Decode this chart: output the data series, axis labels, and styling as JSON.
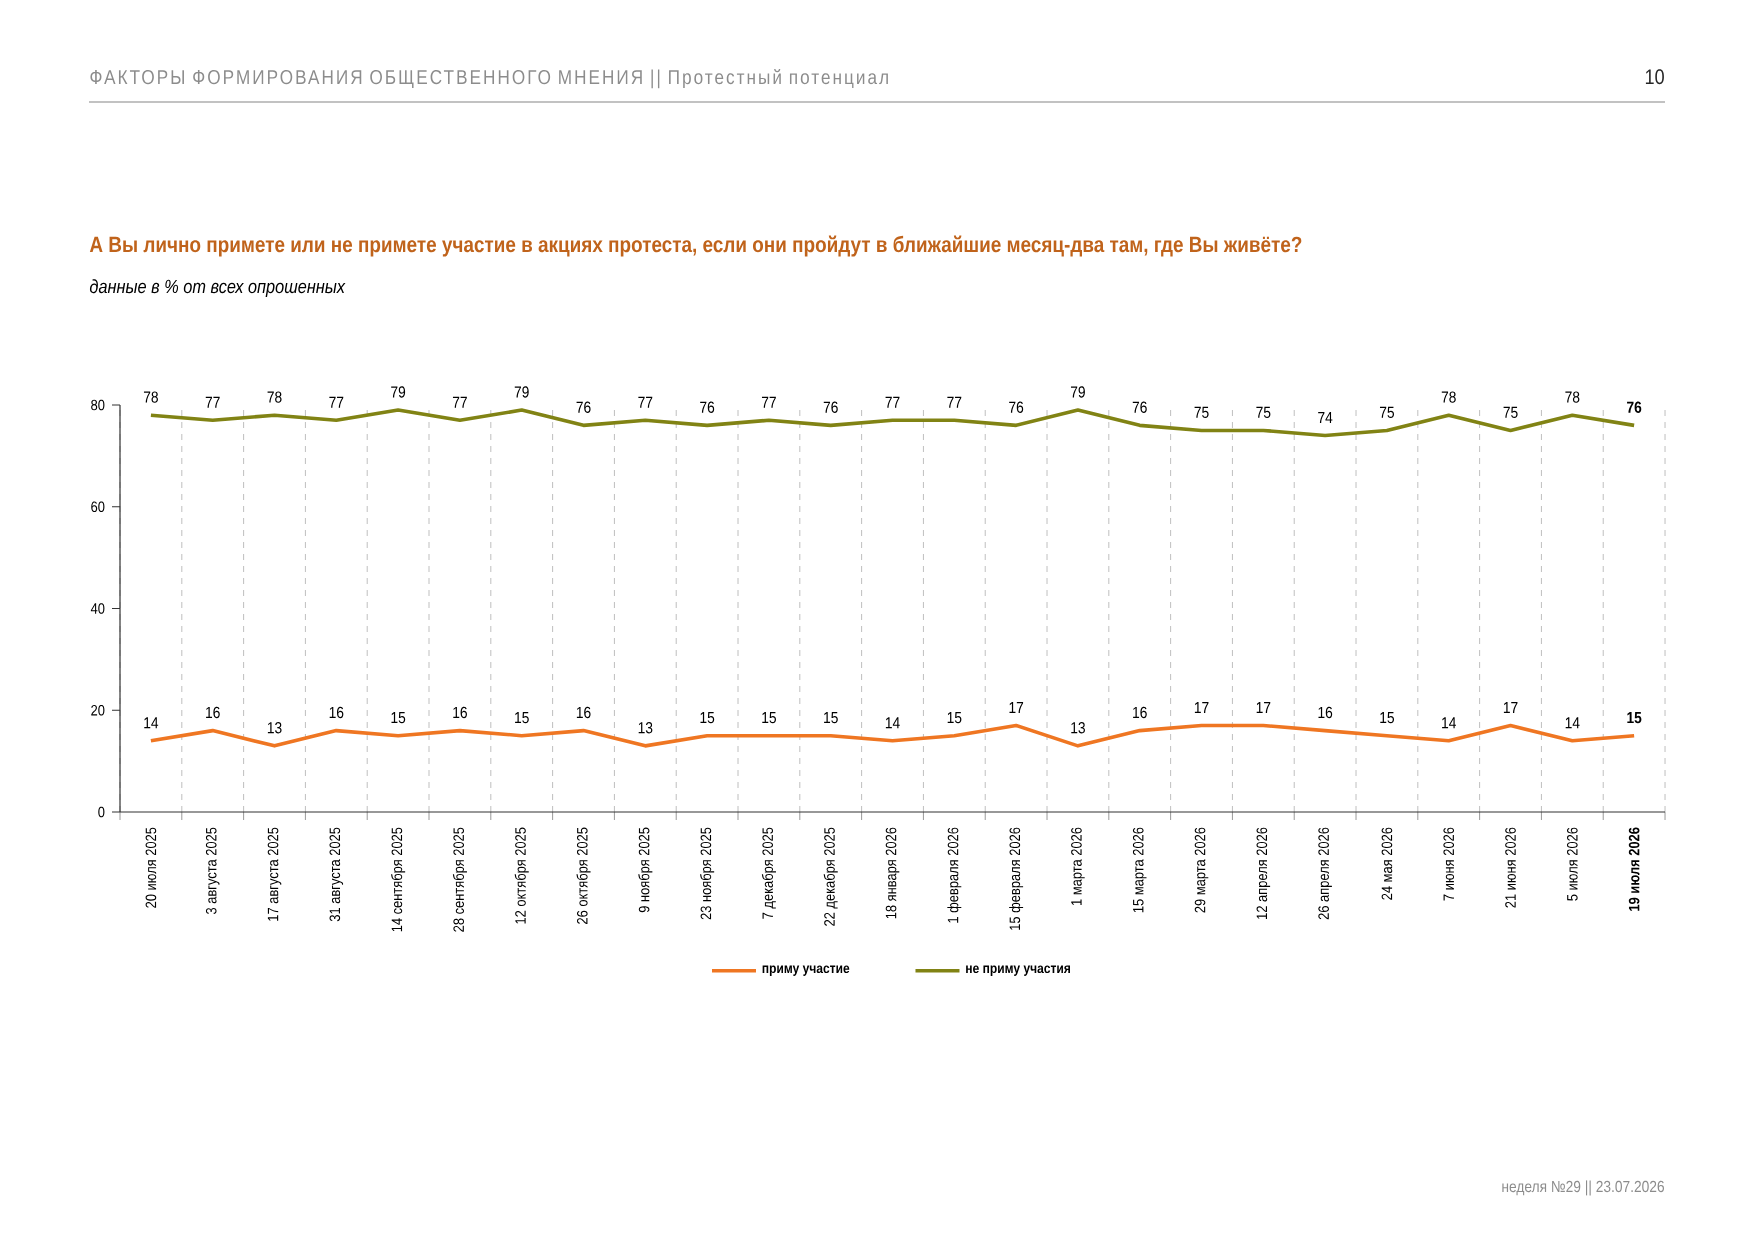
{
  "chart_data": {
    "type": "line",
    "title": "А Вы лично примете или не примете участие в акциях протеста, если они пройдут в ближайшие месяц-два там, где Вы живёте?",
    "subtitle": "данные в % от всех опрошенных",
    "categories": [
      "20 июля 2025",
      "3 августа 2025",
      "17 августа 2025",
      "31 августа 2025",
      "14 сентября 2025",
      "28 сентября 2025",
      "12 октября 2025",
      "26 октября 2025",
      "9 ноября 2025",
      "23 ноября 2025",
      "7 декабря 2025",
      "22 декабря 2025",
      "18 января 2026",
      "1 февраля 2026",
      "15 февраля 2026",
      "1 марта 2026",
      "15 марта 2026",
      "29 марта 2026",
      "12 апреля 2026",
      "26 апреля 2026",
      "24 мая 2026",
      "7 июня 2026",
      "21 июня 2026",
      "5 июля 2026",
      "19 июля 2026"
    ],
    "series": [
      {
        "name": "приму участие",
        "color": "#ef7622",
        "values": [
          14,
          16,
          13,
          16,
          15,
          16,
          15,
          16,
          13,
          15,
          15,
          15,
          14,
          15,
          17,
          13,
          16,
          17,
          17,
          16,
          15,
          14,
          17,
          14,
          15
        ]
      },
      {
        "name": "не приму участия",
        "color": "#818314",
        "values": [
          78,
          77,
          78,
          77,
          79,
          77,
          79,
          76,
          77,
          76,
          77,
          76,
          77,
          77,
          76,
          79,
          76,
          75,
          75,
          74,
          75,
          78,
          75,
          78,
          76
        ]
      }
    ],
    "ylim": [
      0,
      80
    ],
    "yticks": [
      0,
      20,
      40,
      60,
      80
    ],
    "grid": "x",
    "legend": "bottom",
    "data_labels": true,
    "annotations": [
      "ФАКТОРЫ ФОРМИРОВАНИЯ ОБЩЕСТВЕННОГО МНЕНИЯ  ||  Протестный потенциал",
      "10",
      "неделя №29 || 23.07.2026"
    ]
  }
}
